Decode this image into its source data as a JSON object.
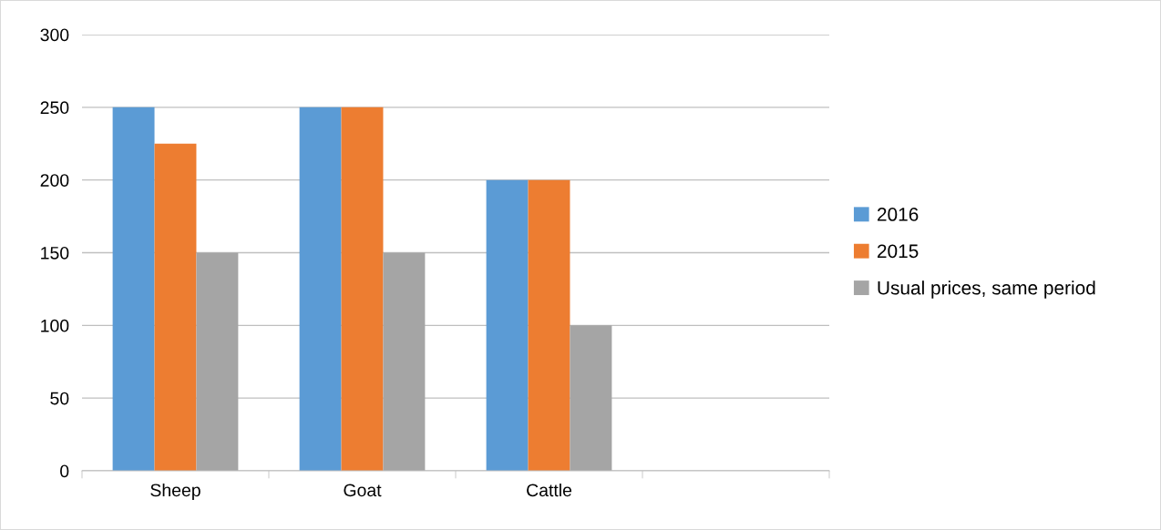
{
  "chart_data": {
    "type": "bar",
    "categories": [
      "Sheep",
      "Goat",
      "Cattle",
      null
    ],
    "series": [
      {
        "name": "2016",
        "color": "#5b9bd5",
        "values": [
          250,
          250,
          200,
          null
        ]
      },
      {
        "name": "2015",
        "color": "#ed7d31",
        "values": [
          225,
          250,
          200,
          null
        ]
      },
      {
        "name": "Usual prices, same period",
        "color": "#a5a5a5",
        "values": [
          150,
          150,
          100,
          null
        ]
      }
    ],
    "ylim": [
      0,
      300
    ],
    "yticks": [
      0,
      50,
      100,
      150,
      200,
      250,
      300
    ],
    "grid": "y",
    "legend": "right"
  }
}
